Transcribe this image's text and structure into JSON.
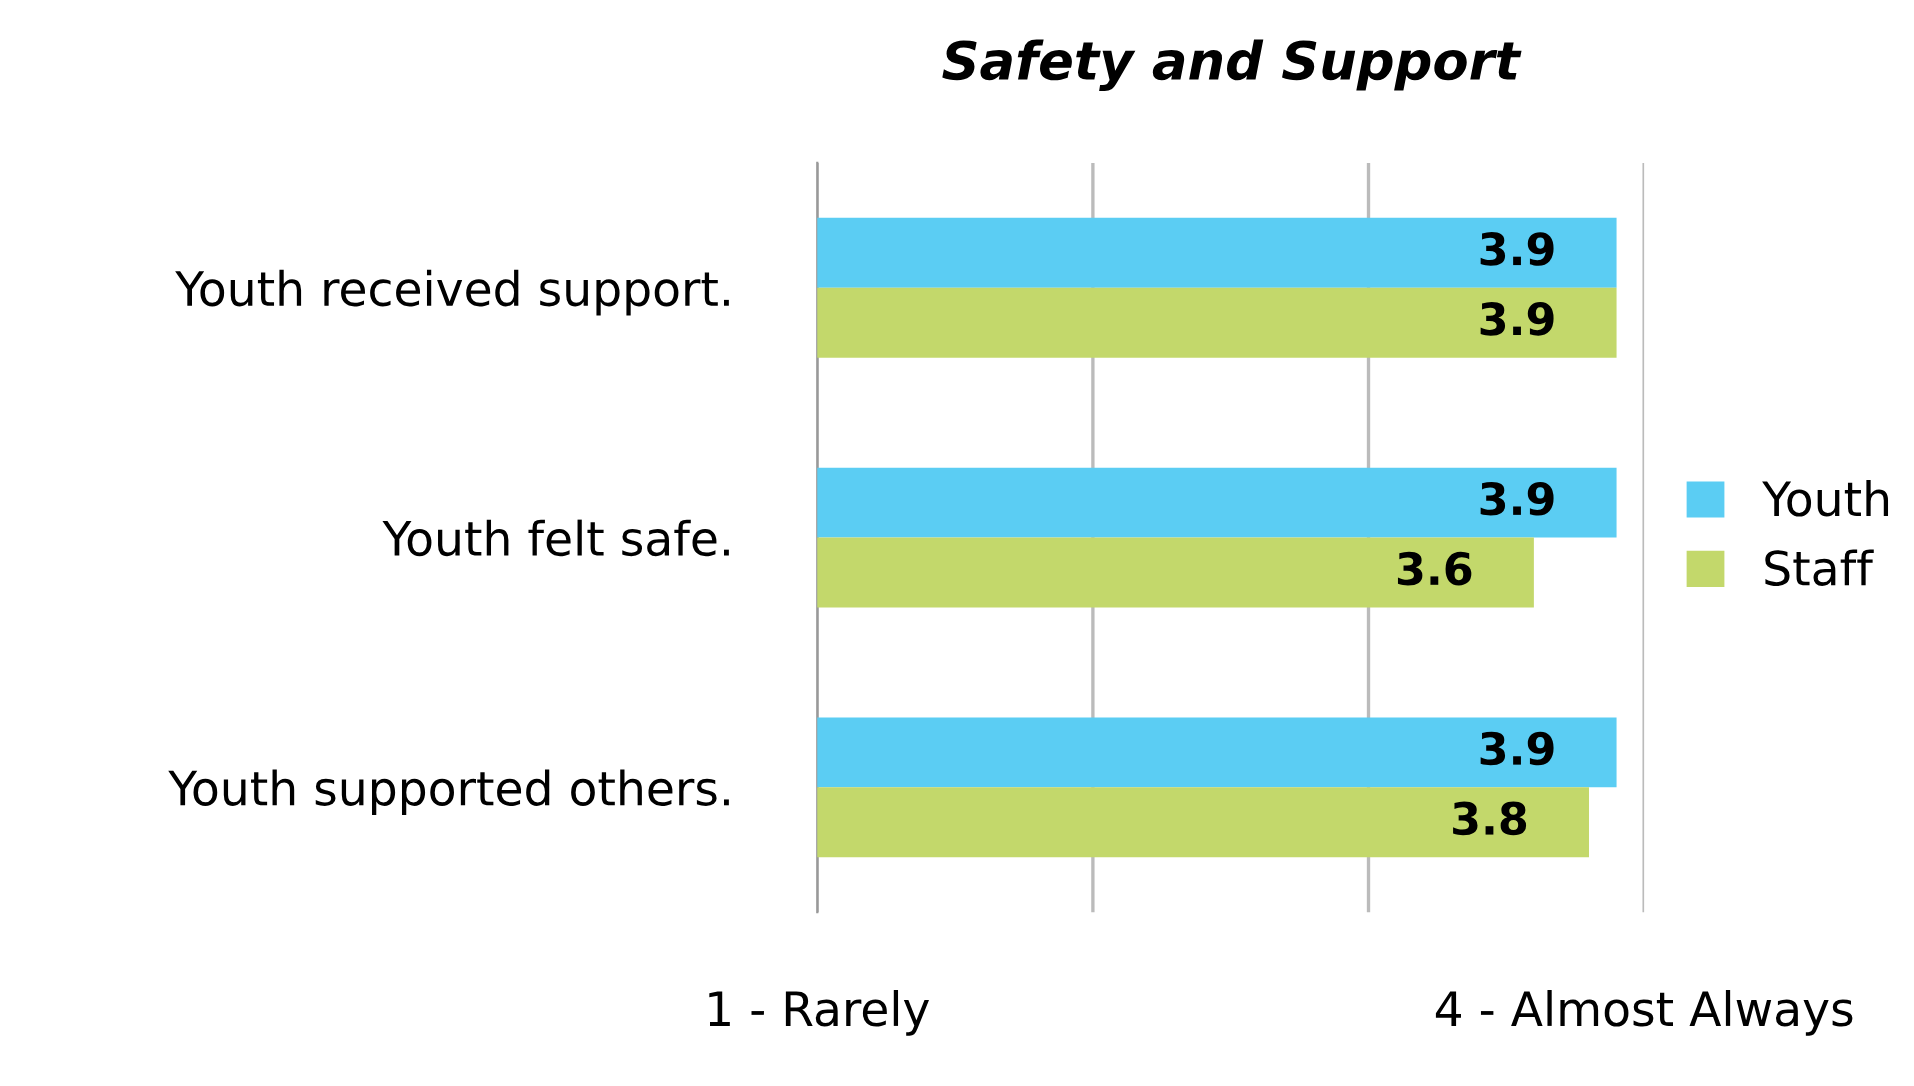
{
  "chart_data": {
    "type": "bar",
    "orientation": "horizontal",
    "title": "Safety and Support",
    "categories": [
      "Youth received support.",
      "Youth felt safe.",
      "Youth supported others."
    ],
    "series": [
      {
        "name": "Youth",
        "color": "#5bcdf3",
        "values": [
          3.9,
          3.9,
          3.9
        ]
      },
      {
        "name": "Staff",
        "color": "#c3d86b",
        "values": [
          3.9,
          3.6,
          3.8
        ]
      }
    ],
    "xlim": [
      1,
      4
    ],
    "xticks": [
      {
        "value": 1,
        "label": "1 - Rarely"
      },
      {
        "value": 2,
        "label": null
      },
      {
        "value": 3,
        "label": null
      },
      {
        "value": 4,
        "label": "4 - Almost Always"
      }
    ],
    "grid": "x",
    "legend": "right",
    "data_labels": true
  }
}
